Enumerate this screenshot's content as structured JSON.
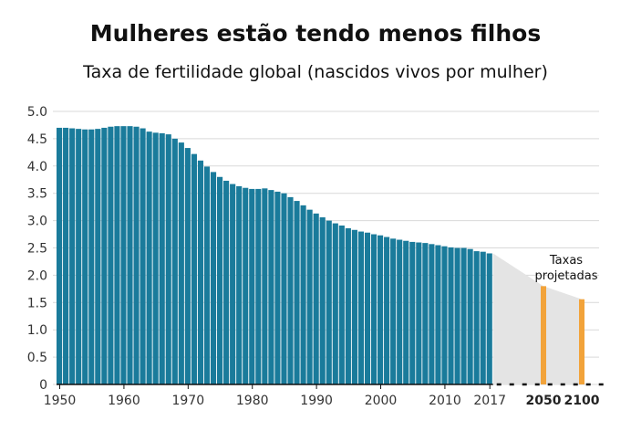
{
  "chart_data": {
    "type": "bar",
    "title": "Mulheres estão tendo menos filhos",
    "subtitle": "Taxa de fertilidade global (nascidos vivos por mulher)",
    "xlabel": "",
    "ylabel": "",
    "ylim": [
      0,
      5.0
    ],
    "yticks": [
      "0",
      "0.5",
      "1.0",
      "1.5",
      "2.0",
      "2.5",
      "3.0",
      "3.5",
      "4.0",
      "4.5",
      "5.0"
    ],
    "xticks": [
      "1950",
      "1960",
      "1970",
      "1980",
      "1990",
      "2000",
      "2010",
      "2017"
    ],
    "grid": true,
    "series": [
      {
        "x": [
          1950,
          1951,
          1952,
          1953,
          1954,
          1955,
          1956,
          1957,
          1958,
          1959,
          1960,
          1961,
          1962,
          1963,
          1964,
          1965,
          1966,
          1967,
          1968,
          1969,
          1970,
          1971,
          1972,
          1973,
          1974,
          1975,
          1976,
          1977,
          1978,
          1979,
          1980,
          1981,
          1982,
          1983,
          1984,
          1985,
          1986,
          1987,
          1988,
          1989,
          1990,
          1991,
          1992,
          1993,
          1994,
          1995,
          1996,
          1997,
          1998,
          1999,
          2000,
          2001,
          2002,
          2003,
          2004,
          2005,
          2006,
          2007,
          2008,
          2009,
          2010,
          2011,
          2012,
          2013,
          2014,
          2015,
          2016,
          2017
        ],
        "values": [
          4.7,
          4.7,
          4.69,
          4.68,
          4.67,
          4.67,
          4.68,
          4.7,
          4.72,
          4.73,
          4.73,
          4.73,
          4.72,
          4.69,
          4.63,
          4.61,
          4.6,
          4.58,
          4.5,
          4.43,
          4.33,
          4.22,
          4.1,
          3.99,
          3.89,
          3.8,
          3.73,
          3.67,
          3.63,
          3.6,
          3.58,
          3.58,
          3.59,
          3.56,
          3.53,
          3.5,
          3.43,
          3.36,
          3.28,
          3.2,
          3.13,
          3.06,
          3.0,
          2.95,
          2.91,
          2.86,
          2.83,
          2.8,
          2.78,
          2.75,
          2.73,
          2.7,
          2.67,
          2.65,
          2.63,
          2.61,
          2.6,
          2.59,
          2.57,
          2.55,
          2.53,
          2.51,
          2.5,
          2.5,
          2.48,
          2.44,
          2.43,
          2.4
        ]
      },
      {
        "categories": [
          "2050",
          "2100"
        ],
        "values": [
          1.8,
          1.56
        ]
      }
    ],
    "projection_label": "Taxas projetadas",
    "colors": {
      "historical": "#1a7b9b",
      "projected": "#f2a33a",
      "band": "#e4e4e4",
      "grid": "#d9d9d9"
    }
  }
}
